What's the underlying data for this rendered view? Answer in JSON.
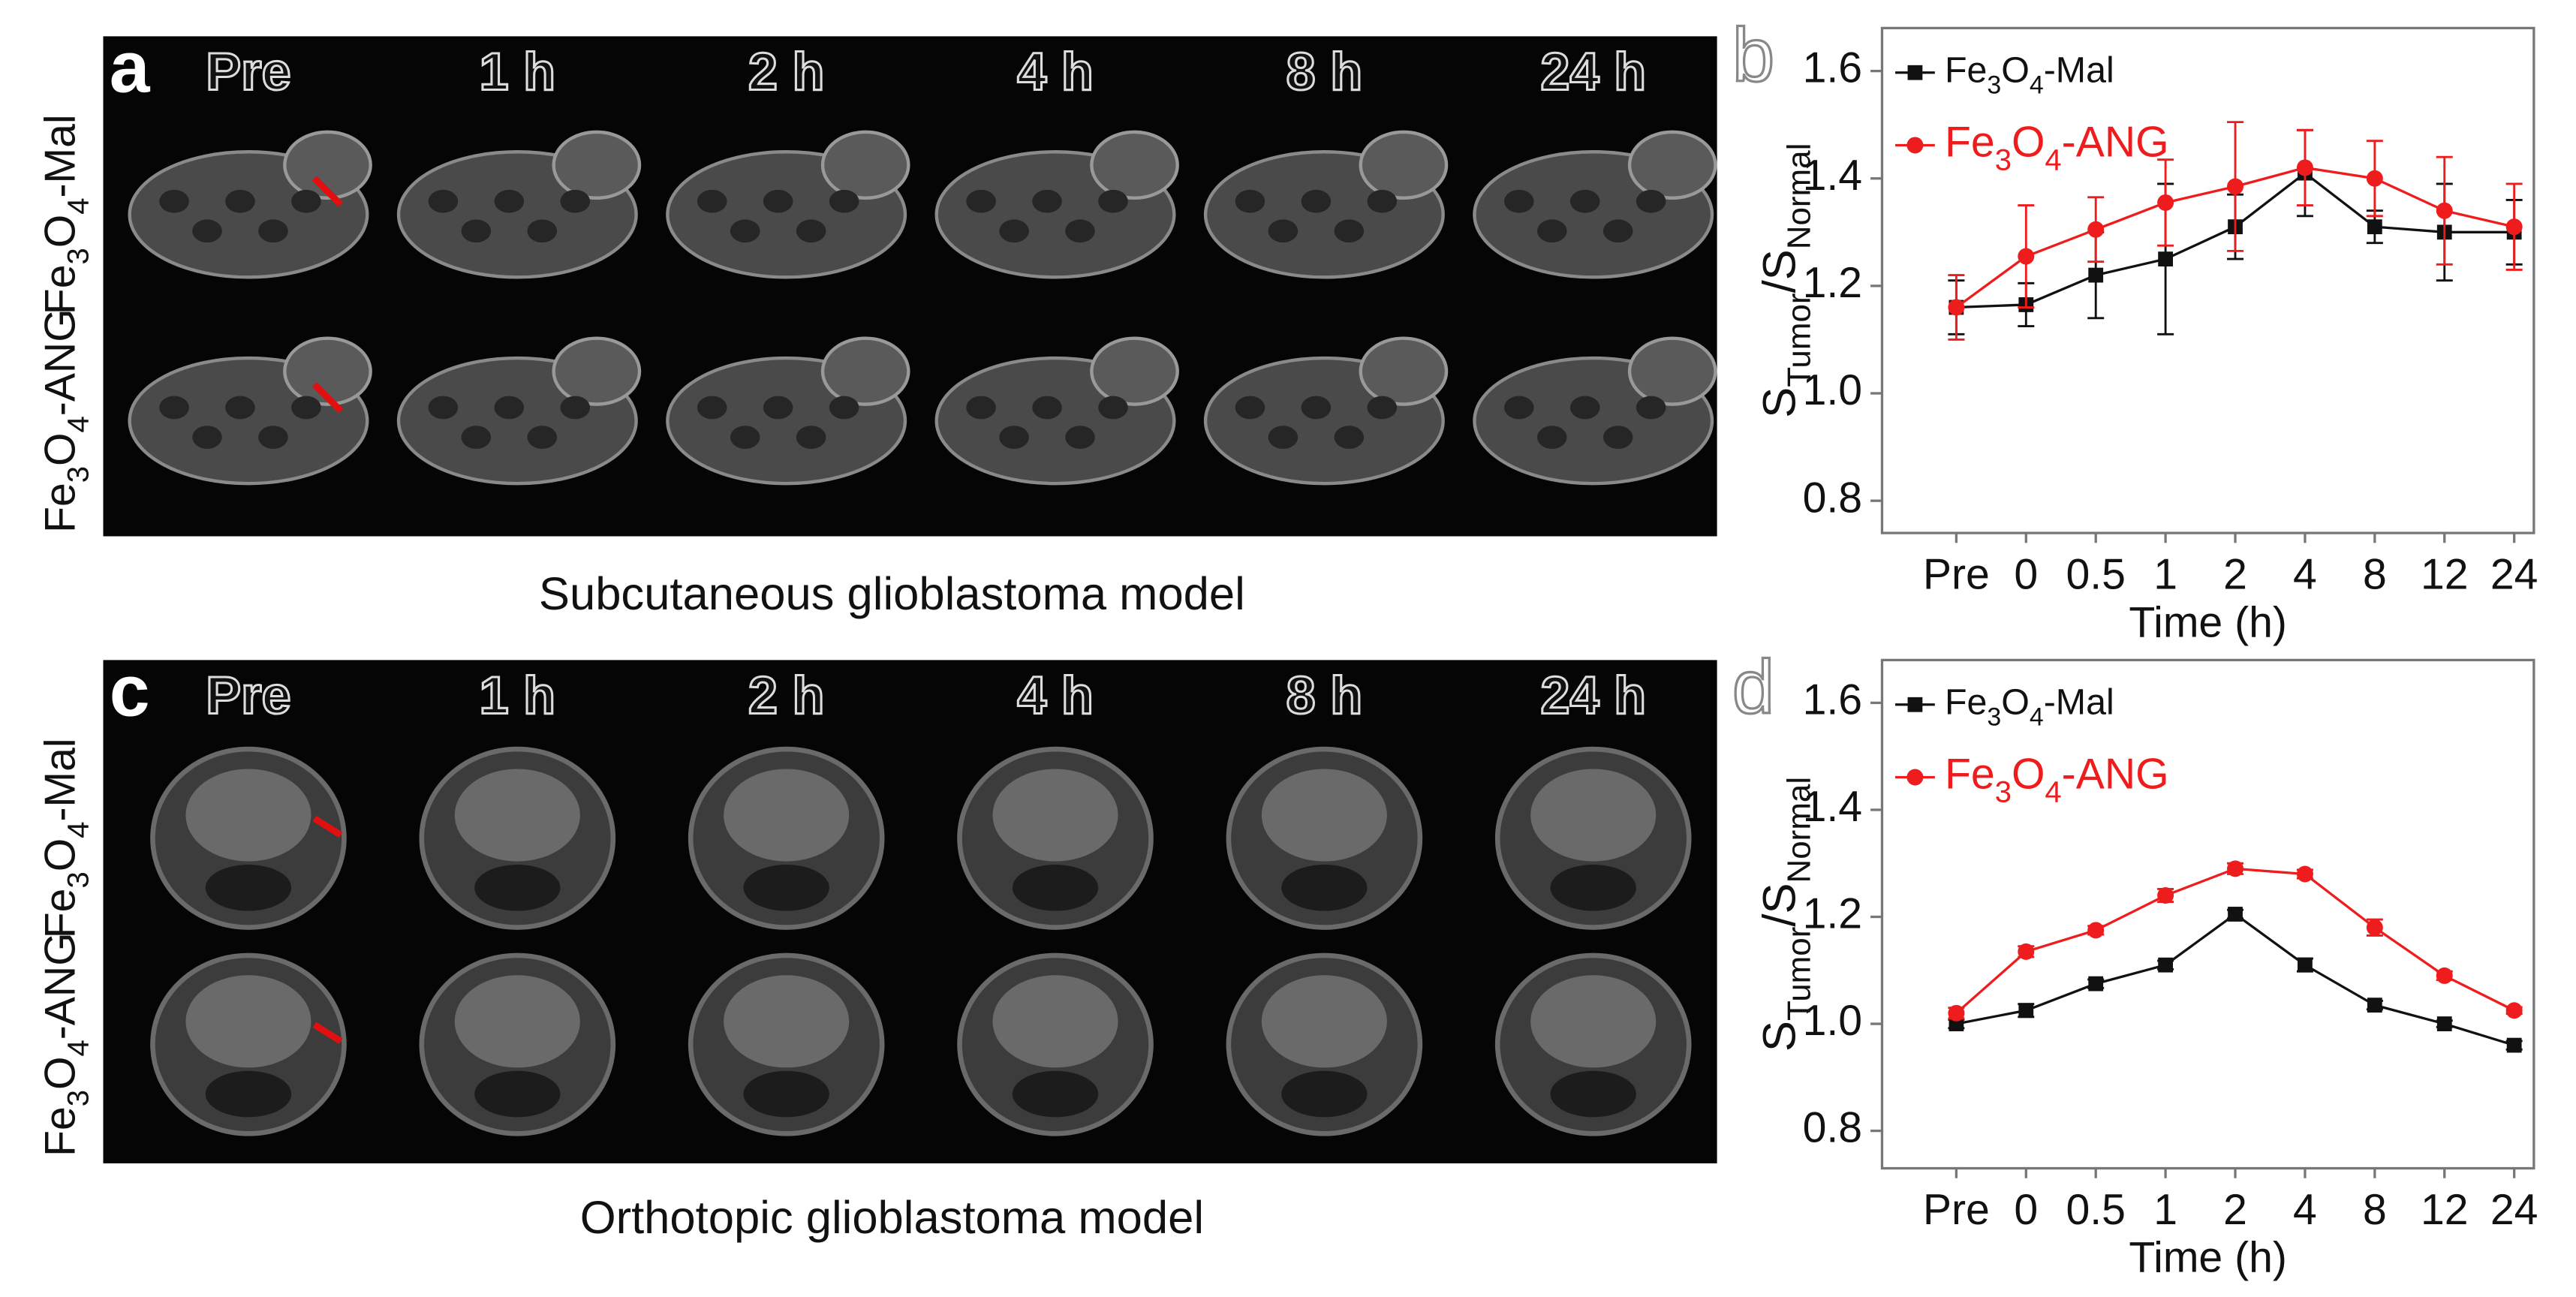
{
  "panel_a": {
    "letter": "a",
    "columns": [
      "Pre",
      "1 h",
      "2 h",
      "4 h",
      "8 h",
      "24 h"
    ],
    "rows": [
      "Fe3O4-Mal",
      "Fe3O4-ANG"
    ],
    "caption": "Subcutaneous glioblastoma model"
  },
  "panel_c": {
    "letter": "c",
    "columns": [
      "Pre",
      "1 h",
      "2 h",
      "4 h",
      "8 h",
      "24 h"
    ],
    "rows": [
      "Fe3O4-Mal",
      "Fe3O4-ANG"
    ],
    "caption": "Orthotopic glioblastoma model"
  },
  "chart_data": [
    {
      "type": "line",
      "letter": "b",
      "categories": [
        "Pre",
        "0",
        "0.5",
        "1",
        "2",
        "4",
        "8",
        "12",
        "24"
      ],
      "series": [
        {
          "name": "Fe3O4-Mal",
          "color": "#111111",
          "marker": "square",
          "values": [
            1.16,
            1.165,
            1.22,
            1.25,
            1.31,
            1.41,
            1.31,
            1.3,
            1.3
          ],
          "errors": [
            0.05,
            0.04,
            0.08,
            0.14,
            0.06,
            0.08,
            0.03,
            0.09,
            0.06
          ]
        },
        {
          "name": "Fe3O4-ANG",
          "color": "#ee1c1c",
          "marker": "circle",
          "values": [
            1.16,
            1.255,
            1.305,
            1.355,
            1.385,
            1.42,
            1.4,
            1.34,
            1.31
          ],
          "errors": [
            0.06,
            0.095,
            0.06,
            0.08,
            0.12,
            0.07,
            0.07,
            0.1,
            0.08
          ]
        }
      ],
      "ylabel": [
        {
          "text": "S"
        },
        {
          "text": "Tumor",
          "sub": true
        },
        {
          "text": "/S"
        },
        {
          "text": "Normal",
          "sub": true
        }
      ],
      "xlabel": "Time (h)",
      "ylim": [
        0.74,
        1.68
      ],
      "yticks": [
        0.8,
        {
          "value": 1,
          "label": "1.0"
        },
        1.2,
        1.4,
        1.6
      ]
    },
    {
      "type": "line",
      "letter": "d",
      "categories": [
        "Pre",
        "0",
        "0.5",
        "1",
        "2",
        "4",
        "8",
        "12",
        "24"
      ],
      "series": [
        {
          "name": "Fe3O4-Mal",
          "color": "#111111",
          "marker": "square",
          "values": [
            1.0,
            1.025,
            1.075,
            1.11,
            1.205,
            1.11,
            1.035,
            1.0,
            0.96
          ],
          "errors": [
            0.008,
            0.012,
            0.008,
            0.008,
            0.008,
            0.012,
            0.008,
            0.006,
            0.008
          ]
        },
        {
          "name": "Fe3O4-ANG",
          "color": "#ee1c1c",
          "marker": "circle",
          "values": [
            1.02,
            1.135,
            1.175,
            1.24,
            1.29,
            1.28,
            1.18,
            1.09,
            1.025
          ],
          "errors": [
            0.01,
            0.01,
            0.008,
            0.012,
            0.01,
            0.008,
            0.015,
            0.008,
            0.006
          ]
        }
      ],
      "ylabel": [
        {
          "text": "S"
        },
        {
          "text": "Tumor",
          "sub": true
        },
        {
          "text": "/S"
        },
        {
          "text": "Normal",
          "sub": true
        }
      ],
      "xlabel": "Time (h)",
      "ylim": [
        0.73,
        1.68
      ],
      "yticks": [
        0.8,
        {
          "value": 1,
          "label": "1.0"
        },
        1.2,
        1.4,
        1.6
      ]
    }
  ]
}
